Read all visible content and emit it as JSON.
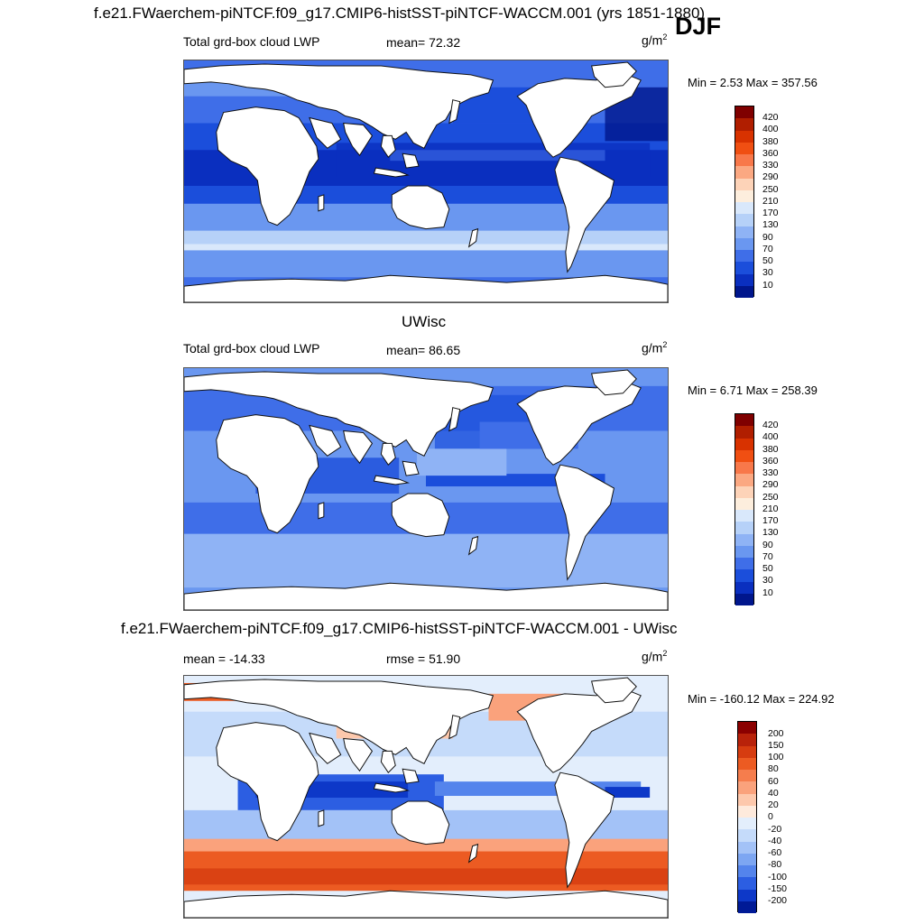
{
  "main_title": "f.e21.FWaerchem-piNTCF.f09_g17.CMIP6-histSST-piNTCF-WACCM.001 (yrs 1851-1880)",
  "season": "DJF",
  "unit_base": "g/m",
  "unit_exp": "2",
  "panels": [
    {
      "variable": "Total grd-box cloud LWP",
      "stat": "mean=  72.32",
      "minmax": "Min =   2.53 Max = 357.56",
      "colorbar_labels": [
        "420",
        "400",
        "380",
        "360",
        "330",
        "290",
        "250",
        "210",
        "170",
        "130",
        "90",
        "70",
        "50",
        "30",
        "10"
      ]
    },
    {
      "subtitle": "UWisc",
      "variable": "Total grd-box cloud LWP",
      "stat": "mean=  86.65",
      "minmax": "Min =   6.71 Max = 258.39",
      "colorbar_labels": [
        "420",
        "400",
        "380",
        "360",
        "330",
        "290",
        "250",
        "210",
        "170",
        "130",
        "90",
        "70",
        "50",
        "30",
        "10"
      ]
    },
    {
      "subtitle": "f.e21.FWaerchem-piNTCF.f09_g17.CMIP6-histSST-piNTCF-WACCM.001 - UWisc",
      "stat_mean": "mean = -14.33",
      "stat_rmse": "rmse =  51.90",
      "minmax": "Min = -160.12 Max = 224.92",
      "colorbar_labels": [
        "200",
        "150",
        "100",
        "80",
        "60",
        "40",
        "20",
        "0",
        "-20",
        "-40",
        "-60",
        "-80",
        "-100",
        "-150",
        "-200"
      ]
    }
  ],
  "colors": {
    "lwp_scale": [
      "#7f0000",
      "#b01e00",
      "#d83200",
      "#f04f12",
      "#f8784a",
      "#fba882",
      "#fdd3b8",
      "#fdeedd",
      "#d9e8fb",
      "#b6d1f8",
      "#8fb3f5",
      "#6a97f0",
      "#3f6ee8",
      "#1b4edb",
      "#0a2fbf",
      "#00168c"
    ],
    "diff_scale": [
      "#8b0000",
      "#b8220a",
      "#d63c10",
      "#ec5b22",
      "#f57d4d",
      "#faa27c",
      "#fdc8ac",
      "#feeadc",
      "#e3eefc",
      "#c5dbfa",
      "#a3c2f7",
      "#7da6f2",
      "#5484ec",
      "#2c5ee2",
      "#0d38c8",
      "#001a96"
    ]
  }
}
